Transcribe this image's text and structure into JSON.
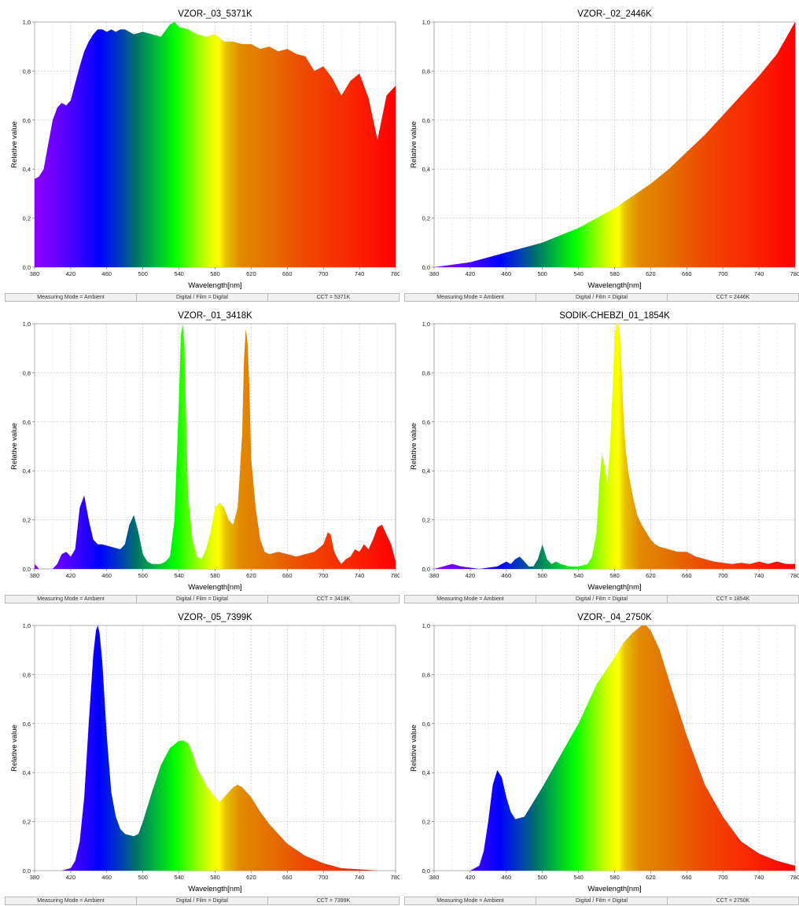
{
  "chart_data": [
    {
      "type": "area",
      "title": "VZOR-_03_5371K",
      "xlabel": "Wavelength[nm]",
      "ylabel": "Relative value",
      "xlim": [
        380,
        780
      ],
      "ylim": [
        0,
        1
      ],
      "x_ticks": [
        "380",
        "420",
        "460",
        "500",
        "540",
        "580",
        "620",
        "660",
        "700",
        "740",
        "780"
      ],
      "y_ticks": [
        "0,0",
        "0,2",
        "0,4",
        "0,6",
        "0,8",
        "1,0"
      ],
      "grid": true,
      "fill": "spectral-gradient",
      "x": [
        380,
        385,
        390,
        395,
        400,
        405,
        410,
        415,
        420,
        425,
        430,
        435,
        440,
        445,
        450,
        455,
        460,
        465,
        470,
        475,
        480,
        485,
        490,
        500,
        510,
        520,
        530,
        535,
        540,
        550,
        560,
        570,
        580,
        590,
        600,
        610,
        620,
        630,
        640,
        650,
        660,
        670,
        680,
        690,
        700,
        710,
        720,
        730,
        740,
        750,
        760,
        770,
        780
      ],
      "values": [
        0.36,
        0.37,
        0.4,
        0.5,
        0.6,
        0.65,
        0.67,
        0.66,
        0.68,
        0.75,
        0.82,
        0.88,
        0.92,
        0.95,
        0.97,
        0.97,
        0.96,
        0.97,
        0.96,
        0.97,
        0.97,
        0.96,
        0.95,
        0.96,
        0.95,
        0.94,
        0.99,
        1.0,
        0.98,
        0.97,
        0.95,
        0.94,
        0.95,
        0.92,
        0.92,
        0.91,
        0.91,
        0.89,
        0.9,
        0.88,
        0.89,
        0.87,
        0.86,
        0.8,
        0.82,
        0.77,
        0.7,
        0.76,
        0.79,
        0.69,
        0.52,
        0.7,
        0.74
      ],
      "status": [
        "Measuring Mode = Ambient",
        "Digital / Film = Digital",
        "CCT = 5371K"
      ]
    },
    {
      "type": "area",
      "title": "VZOR-_02_2446K",
      "xlabel": "Wavelength[nm]",
      "ylabel": "Relative value",
      "xlim": [
        380,
        780
      ],
      "ylim": [
        0,
        1
      ],
      "x_ticks": [
        "380",
        "420",
        "460",
        "500",
        "540",
        "580",
        "620",
        "660",
        "700",
        "740",
        "780"
      ],
      "y_ticks": [
        "0,0",
        "0,2",
        "0,4",
        "0,6",
        "0,8",
        "1,0"
      ],
      "grid": true,
      "fill": "spectral-gradient",
      "x": [
        380,
        400,
        420,
        440,
        460,
        480,
        500,
        520,
        540,
        560,
        580,
        600,
        620,
        640,
        660,
        680,
        700,
        720,
        740,
        760,
        780
      ],
      "values": [
        0.0,
        0.01,
        0.02,
        0.04,
        0.06,
        0.08,
        0.1,
        0.13,
        0.16,
        0.2,
        0.24,
        0.29,
        0.34,
        0.4,
        0.47,
        0.54,
        0.62,
        0.7,
        0.78,
        0.87,
        1.0
      ],
      "status": [
        "Measuring Mode = Ambient",
        "Digital / Film = Digital",
        "CCT = 2446K"
      ]
    },
    {
      "type": "area",
      "title": "VZOR-_01_3418K",
      "xlabel": "Wavelength[nm]",
      "ylabel": "Relative value",
      "xlim": [
        380,
        780
      ],
      "ylim": [
        0,
        1
      ],
      "x_ticks": [
        "380",
        "420",
        "460",
        "500",
        "540",
        "580",
        "620",
        "660",
        "700",
        "740",
        "780"
      ],
      "y_ticks": [
        "0,0",
        "0,2",
        "0,4",
        "0,6",
        "0,8",
        "1,0"
      ],
      "grid": true,
      "fill": "spectral-gradient",
      "x": [
        380,
        385,
        390,
        395,
        400,
        405,
        410,
        415,
        420,
        425,
        430,
        435,
        440,
        445,
        450,
        455,
        460,
        465,
        470,
        475,
        480,
        485,
        490,
        495,
        500,
        505,
        510,
        515,
        520,
        525,
        530,
        535,
        540,
        542,
        544,
        546,
        548,
        550,
        555,
        560,
        565,
        570,
        575,
        580,
        585,
        590,
        595,
        600,
        605,
        610,
        612,
        614,
        616,
        618,
        620,
        625,
        630,
        635,
        640,
        650,
        660,
        670,
        680,
        690,
        700,
        705,
        708,
        712,
        716,
        720,
        725,
        730,
        735,
        740,
        745,
        750,
        755,
        760,
        765,
        770,
        775,
        780
      ],
      "values": [
        0.02,
        0.0,
        0.0,
        0.0,
        0.0,
        0.02,
        0.06,
        0.07,
        0.05,
        0.08,
        0.25,
        0.3,
        0.2,
        0.12,
        0.1,
        0.1,
        0.095,
        0.09,
        0.085,
        0.08,
        0.1,
        0.18,
        0.22,
        0.15,
        0.06,
        0.03,
        0.02,
        0.02,
        0.02,
        0.03,
        0.05,
        0.2,
        0.7,
        0.95,
        1.0,
        0.92,
        0.6,
        0.3,
        0.12,
        0.05,
        0.04,
        0.08,
        0.15,
        0.25,
        0.27,
        0.25,
        0.2,
        0.18,
        0.25,
        0.55,
        0.85,
        0.98,
        0.92,
        0.75,
        0.45,
        0.25,
        0.12,
        0.07,
        0.06,
        0.07,
        0.06,
        0.05,
        0.06,
        0.07,
        0.1,
        0.15,
        0.14,
        0.07,
        0.04,
        0.02,
        0.04,
        0.05,
        0.08,
        0.07,
        0.1,
        0.08,
        0.12,
        0.17,
        0.18,
        0.14,
        0.1,
        0.03
      ],
      "status": [
        "Measuring Mode = Ambient",
        "Digital / Film = Digital",
        "CCT = 3418K"
      ]
    },
    {
      "type": "area",
      "title": "SODIK-CHEBZI_01_1854K",
      "xlabel": "Wavelength[nm]",
      "ylabel": "Relative value",
      "xlim": [
        380,
        780
      ],
      "ylim": [
        0,
        1
      ],
      "x_ticks": [
        "380",
        "420",
        "460",
        "500",
        "540",
        "580",
        "620",
        "660",
        "700",
        "740",
        "780"
      ],
      "y_ticks": [
        "0,0",
        "0,2",
        "0,4",
        "0,6",
        "0,8",
        "1,0"
      ],
      "grid": true,
      "fill": "spectral-gradient",
      "x": [
        380,
        390,
        400,
        410,
        420,
        430,
        440,
        450,
        460,
        465,
        470,
        475,
        480,
        485,
        490,
        495,
        500,
        505,
        510,
        515,
        520,
        530,
        540,
        550,
        555,
        560,
        563,
        566,
        569,
        572,
        575,
        578,
        580,
        582,
        584,
        586,
        588,
        590,
        592,
        595,
        600,
        605,
        610,
        615,
        620,
        625,
        630,
        640,
        650,
        660,
        670,
        680,
        690,
        700,
        710,
        720,
        730,
        740,
        750,
        760,
        770,
        780
      ],
      "values": [
        0.0,
        0.01,
        0.02,
        0.01,
        0.005,
        0.0,
        0.005,
        0.01,
        0.03,
        0.02,
        0.04,
        0.05,
        0.03,
        0.01,
        0.01,
        0.04,
        0.1,
        0.04,
        0.02,
        0.03,
        0.02,
        0.01,
        0.01,
        0.02,
        0.05,
        0.15,
        0.35,
        0.47,
        0.42,
        0.35,
        0.5,
        0.75,
        0.95,
        1.0,
        1.0,
        0.95,
        0.8,
        0.62,
        0.5,
        0.4,
        0.3,
        0.22,
        0.18,
        0.15,
        0.12,
        0.1,
        0.09,
        0.08,
        0.07,
        0.07,
        0.05,
        0.04,
        0.03,
        0.025,
        0.02,
        0.025,
        0.02,
        0.03,
        0.02,
        0.03,
        0.02,
        0.02
      ],
      "status": [
        "Measuring Mode = Ambient",
        "Digital / Film = Digital",
        "CCT = 1854K"
      ]
    },
    {
      "type": "area",
      "title": "VZOR-_05_7399K",
      "xlabel": "Wavelength[nm]",
      "ylabel": "Relative value",
      "xlim": [
        380,
        780
      ],
      "ylim": [
        0,
        1
      ],
      "x_ticks": [
        "380",
        "420",
        "460",
        "500",
        "540",
        "580",
        "620",
        "660",
        "700",
        "740",
        "780"
      ],
      "y_ticks": [
        "0,0",
        "0,2",
        "0,4",
        "0,6",
        "0,8",
        "1,0"
      ],
      "grid": true,
      "fill": "spectral-gradient",
      "x": [
        380,
        400,
        410,
        420,
        425,
        430,
        435,
        440,
        445,
        448,
        450,
        452,
        455,
        460,
        465,
        470,
        475,
        480,
        490,
        495,
        500,
        510,
        520,
        530,
        540,
        545,
        550,
        555,
        560,
        570,
        580,
        585,
        590,
        600,
        605,
        610,
        615,
        620,
        630,
        640,
        650,
        660,
        680,
        700,
        720,
        740,
        760,
        780
      ],
      "values": [
        0.0,
        0.0,
        0.0,
        0.01,
        0.04,
        0.12,
        0.3,
        0.6,
        0.88,
        0.98,
        1.0,
        0.97,
        0.85,
        0.55,
        0.32,
        0.22,
        0.17,
        0.15,
        0.14,
        0.15,
        0.2,
        0.32,
        0.43,
        0.5,
        0.53,
        0.53,
        0.52,
        0.48,
        0.42,
        0.35,
        0.3,
        0.28,
        0.3,
        0.34,
        0.35,
        0.34,
        0.32,
        0.3,
        0.24,
        0.19,
        0.15,
        0.11,
        0.06,
        0.03,
        0.01,
        0.005,
        0.0,
        0.0
      ],
      "status": [
        "Measuring Mode = Ambient",
        "Digital / Film = Digital",
        "CCT = 7399K"
      ]
    },
    {
      "type": "area",
      "title": "VZOR-_04_2750K",
      "xlabel": "Wavelength[nm]",
      "ylabel": "Relative value",
      "xlim": [
        380,
        780
      ],
      "ylim": [
        0,
        1
      ],
      "x_ticks": [
        "380",
        "420",
        "460",
        "500",
        "540",
        "580",
        "620",
        "660",
        "700",
        "740",
        "780"
      ],
      "y_ticks": [
        "0,0",
        "0,2",
        "0,4",
        "0,6",
        "0,8",
        "1,0"
      ],
      "grid": true,
      "fill": "spectral-gradient",
      "x": [
        380,
        400,
        420,
        430,
        435,
        440,
        445,
        450,
        455,
        460,
        465,
        470,
        480,
        490,
        500,
        520,
        540,
        560,
        580,
        590,
        600,
        610,
        615,
        620,
        630,
        640,
        660,
        680,
        700,
        720,
        740,
        760,
        770,
        780
      ],
      "values": [
        0.0,
        0.0,
        0.0,
        0.02,
        0.08,
        0.2,
        0.35,
        0.41,
        0.38,
        0.3,
        0.24,
        0.21,
        0.22,
        0.28,
        0.34,
        0.47,
        0.6,
        0.76,
        0.87,
        0.93,
        0.97,
        1.0,
        1.0,
        0.98,
        0.9,
        0.78,
        0.55,
        0.35,
        0.22,
        0.12,
        0.07,
        0.04,
        0.03,
        0.02
      ],
      "status": [
        "Measuring Mode = Ambient",
        "Digital / Film = Digital",
        "CCT = 2750K"
      ]
    }
  ]
}
